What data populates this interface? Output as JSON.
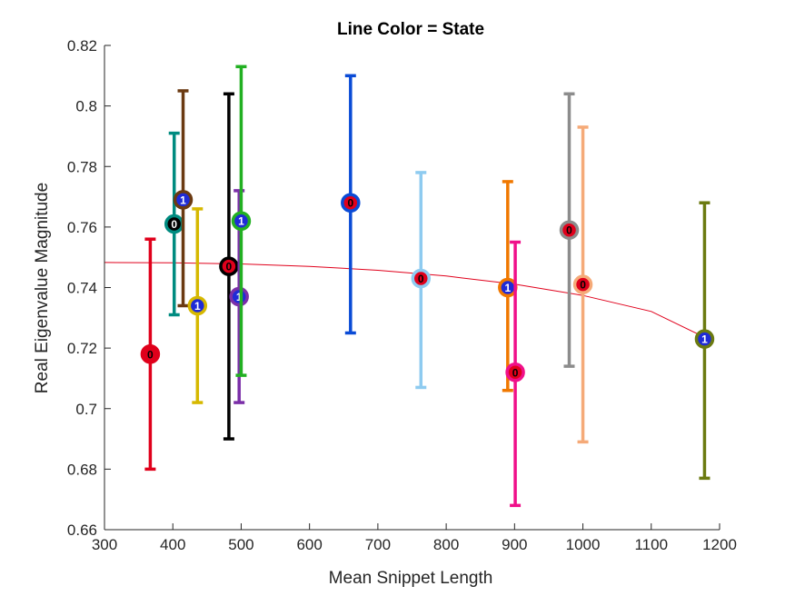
{
  "chart_data": {
    "type": "scatter",
    "title": "Line Color = State",
    "xlabel": "Mean Snippet Length",
    "ylabel": "Real Eigenvalue Magnitude",
    "xlim": [
      300,
      1200
    ],
    "ylim": [
      0.66,
      0.82
    ],
    "x_ticks": [
      "300",
      "400",
      "500",
      "600",
      "700",
      "800",
      "900",
      "1000",
      "1100",
      "1200"
    ],
    "y_ticks": [
      "0.66",
      "0.68",
      "0.7",
      "0.72",
      "0.74",
      "0.76",
      "0.78",
      "0.8",
      "0.82"
    ],
    "grid": false,
    "points": [
      {
        "x": 367,
        "y": 0.718,
        "lower": 0.68,
        "upper": 0.756,
        "color": "#e0001b",
        "fill": "#e0001b",
        "marker_text": "0",
        "marker_text_color": "#000000"
      },
      {
        "x": 402,
        "y": 0.761,
        "lower": 0.731,
        "upper": 0.791,
        "color": "#008b80",
        "fill": "#000000",
        "marker_text": "0",
        "marker_text_color": "#ffffff"
      },
      {
        "x": 415,
        "y": 0.769,
        "lower": 0.734,
        "upper": 0.805,
        "color": "#6b3a12",
        "fill": "#1f2bd6",
        "marker_text": "1",
        "marker_text_color": "#ffffff"
      },
      {
        "x": 436,
        "y": 0.734,
        "lower": 0.702,
        "upper": 0.766,
        "color": "#d6b800",
        "fill": "#1f2bd6",
        "marker_text": "1",
        "marker_text_color": "#ffffff"
      },
      {
        "x": 482,
        "y": 0.747,
        "lower": 0.69,
        "upper": 0.804,
        "color": "#000000",
        "fill": "#e0001b",
        "marker_text": "0",
        "marker_text_color": "#000000"
      },
      {
        "x": 497,
        "y": 0.737,
        "lower": 0.702,
        "upper": 0.772,
        "color": "#7b2fa8",
        "fill": "#1f2bd6",
        "marker_text": "1",
        "marker_text_color": "#ffffff"
      },
      {
        "x": 500,
        "y": 0.762,
        "lower": 0.711,
        "upper": 0.813,
        "color": "#22b022",
        "fill": "#1f2bd6",
        "marker_text": "1",
        "marker_text_color": "#ffffff"
      },
      {
        "x": 660,
        "y": 0.768,
        "lower": 0.725,
        "upper": 0.81,
        "color": "#0a4bd6",
        "fill": "#e0001b",
        "marker_text": "0",
        "marker_text_color": "#000000"
      },
      {
        "x": 763,
        "y": 0.743,
        "lower": 0.707,
        "upper": 0.778,
        "color": "#8ecbf0",
        "fill": "#e0001b",
        "marker_text": "0",
        "marker_text_color": "#000000"
      },
      {
        "x": 890,
        "y": 0.74,
        "lower": 0.706,
        "upper": 0.775,
        "color": "#f07800",
        "fill": "#1f2bd6",
        "marker_text": "1",
        "marker_text_color": "#ffffff"
      },
      {
        "x": 901,
        "y": 0.712,
        "lower": 0.668,
        "upper": 0.755,
        "color": "#f0108a",
        "fill": "#e0001b",
        "marker_text": "0",
        "marker_text_color": "#000000"
      },
      {
        "x": 980,
        "y": 0.759,
        "lower": 0.714,
        "upper": 0.804,
        "color": "#8c8c8c",
        "fill": "#e0001b",
        "marker_text": "0",
        "marker_text_color": "#000000"
      },
      {
        "x": 1000,
        "y": 0.741,
        "lower": 0.689,
        "upper": 0.793,
        "color": "#f5aa78",
        "fill": "#e0001b",
        "marker_text": "0",
        "marker_text_color": "#000000"
      },
      {
        "x": 1178,
        "y": 0.723,
        "lower": 0.677,
        "upper": 0.768,
        "color": "#6b7a10",
        "fill": "#1f2bd6",
        "marker_text": "1",
        "marker_text_color": "#ffffff"
      }
    ],
    "fit_line": {
      "color": "#e0001b",
      "x": [
        300,
        400,
        500,
        600,
        700,
        800,
        900,
        1000,
        1100,
        1186
      ],
      "y": [
        0.7483,
        0.7482,
        0.7478,
        0.747,
        0.7457,
        0.7438,
        0.7411,
        0.7374,
        0.7321,
        0.7227
      ]
    }
  }
}
